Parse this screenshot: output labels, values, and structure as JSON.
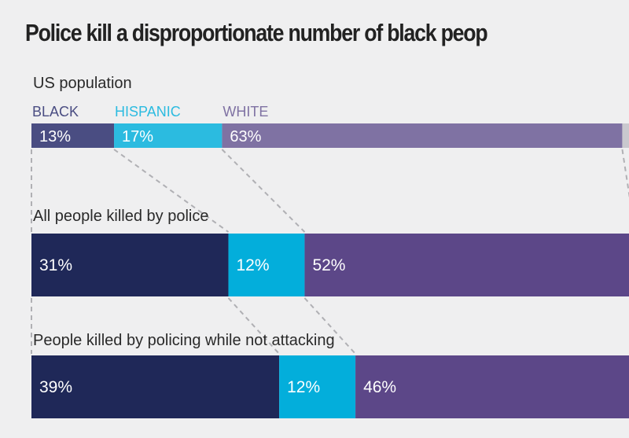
{
  "title": "Police kill a disproportionate number of black peop",
  "chart_data": {
    "type": "bar",
    "subtype": "stacked-horizontal-100",
    "title": "Police kill a disproportionate number of black peop",
    "categories": [
      "BLACK",
      "HISPANIC",
      "WHITE"
    ],
    "category_colors": {
      "population": [
        "#4a4d82",
        "#2bbbe0",
        "#7f72a3"
      ],
      "other": [
        "#1f2858",
        "#03aedb",
        "#5c4788"
      ]
    },
    "remainder_color": "#c9c8ce",
    "groups": [
      {
        "label": "US population",
        "values": [
          13,
          17,
          63
        ],
        "labels": [
          "13%",
          "17%",
          "63%"
        ]
      },
      {
        "label": "All people killed by police",
        "values": [
          31,
          12,
          52
        ],
        "labels": [
          "31%",
          "12%",
          "52%"
        ]
      },
      {
        "label": "People killed by policing while not attacking",
        "values": [
          39,
          12,
          46
        ],
        "labels": [
          "39%",
          "12%",
          "46%"
        ]
      }
    ],
    "xlim": [
      0,
      100
    ],
    "legend": "top-left"
  }
}
